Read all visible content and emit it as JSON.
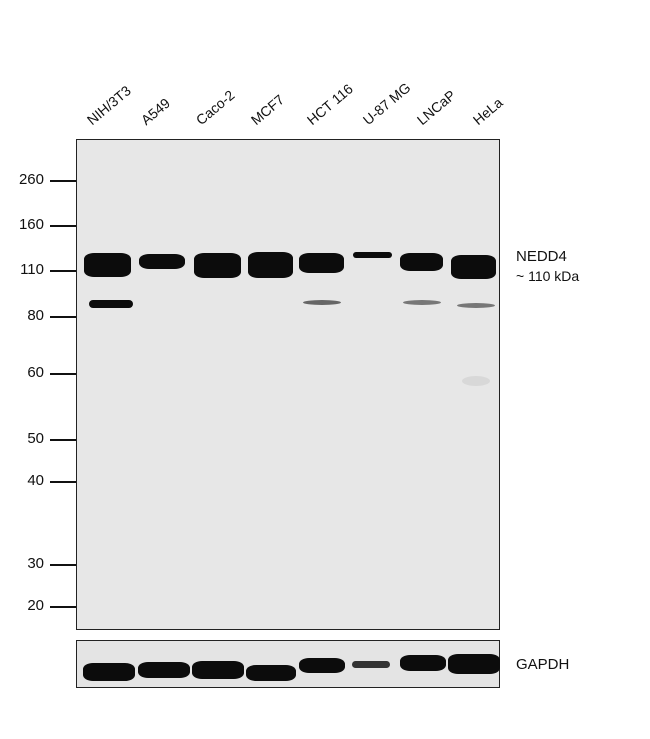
{
  "lanes": [
    "NIH/3T3",
    "A549",
    "Caco-2",
    "MCF7",
    "HCT 116",
    "U-87 MG",
    "LNCaP",
    "HeLa"
  ],
  "markers": [
    "260",
    "160",
    "110",
    "80",
    "60",
    "50",
    "40",
    "30",
    "20"
  ],
  "target_label": "NEDD4",
  "target_size": "~ 110 kDa",
  "loading_control": "GAPDH"
}
